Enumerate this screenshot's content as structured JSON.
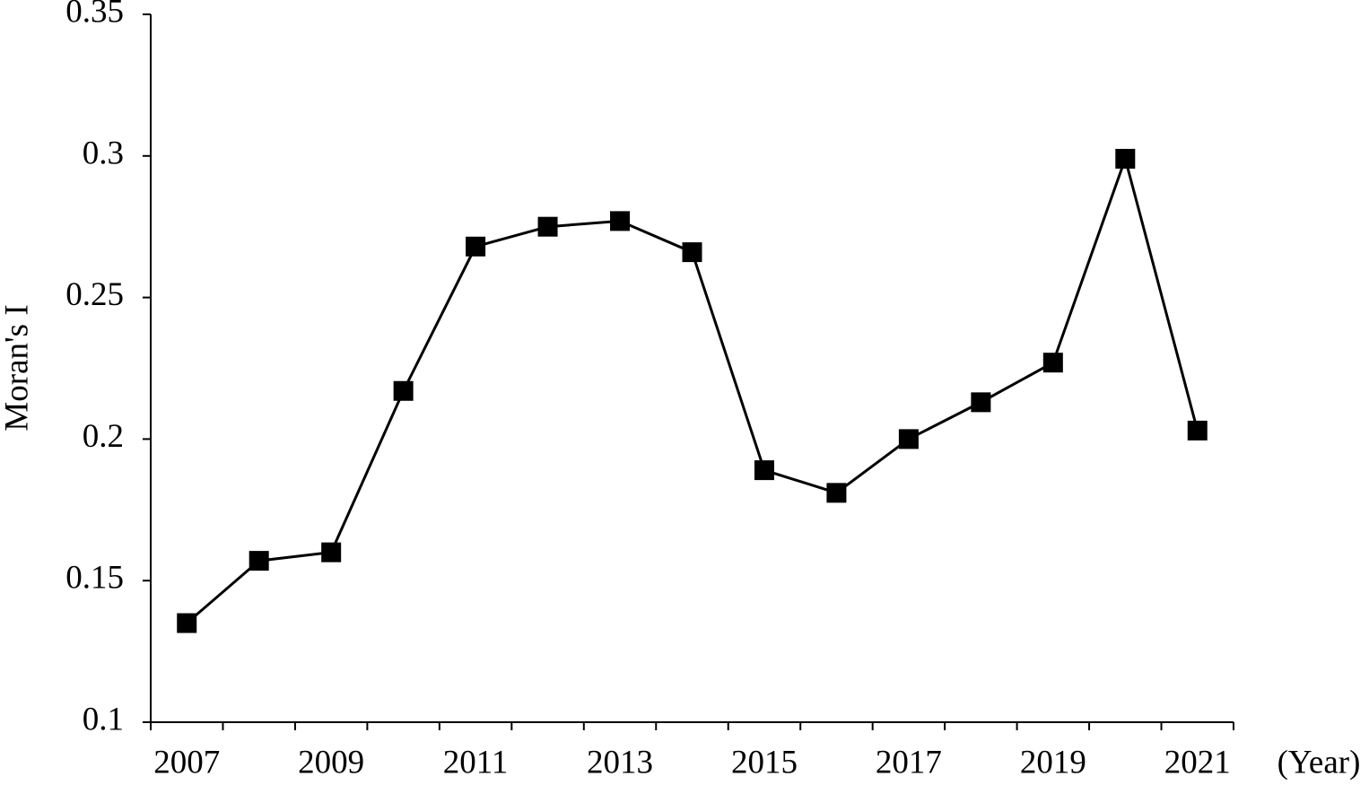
{
  "chart_data": {
    "type": "line",
    "y_label": "Moran's I",
    "x_label": "(Year)",
    "categories": [
      "2007",
      null,
      "2009",
      null,
      "2011",
      null,
      "2013",
      null,
      "2015",
      null,
      "2017",
      null,
      "2019",
      null,
      "2021"
    ],
    "values": [
      0.135,
      0.157,
      0.16,
      0.217,
      0.268,
      0.275,
      0.277,
      0.266,
      0.189,
      0.181,
      0.2,
      0.213,
      0.227,
      0.299,
      0.203
    ],
    "color": "#000000",
    "ylim": [
      0.1,
      0.35
    ],
    "yticks": [
      0.1,
      0.15,
      0.2,
      0.25,
      0.3,
      0.35
    ]
  }
}
